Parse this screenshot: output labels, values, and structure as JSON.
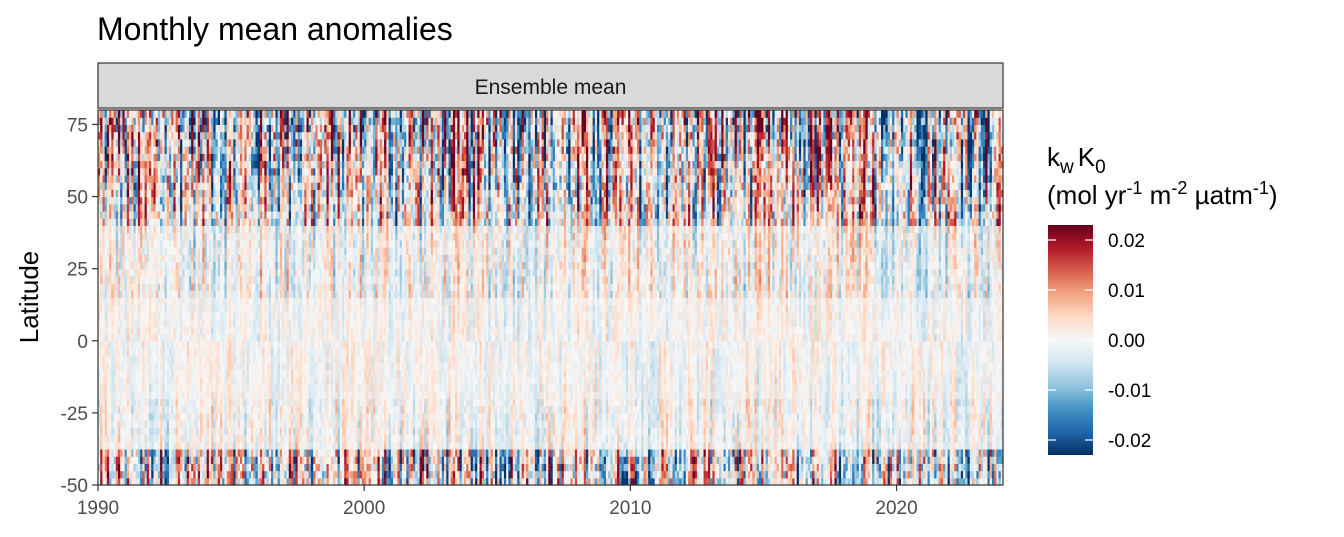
{
  "chart_data": {
    "type": "heatmap",
    "title": "Monthly mean anomalies",
    "facet_label": "Ensemble mean",
    "ylabel": "Latitude",
    "xlabel": "",
    "x_range": [
      1990,
      2024
    ],
    "ylim": [
      -50,
      80
    ],
    "x_ticks": [
      1990,
      2000,
      2010,
      2020
    ],
    "x_tick_labels": [
      "1990",
      "2000",
      "2010",
      "2020"
    ],
    "y_ticks": [
      75,
      50,
      25,
      0,
      -25,
      -50
    ],
    "y_tick_labels": [
      "75",
      "50",
      "25",
      "0",
      "-25",
      "-50"
    ],
    "colorbar": {
      "title_line1_main": "k",
      "title_line1_sub": "w",
      "title_line1_main2": "K",
      "title_line1_sub2": "0",
      "title_line2_a": "(mol yr",
      "title_line2_sup1": "-1",
      "title_line2_b": " m",
      "title_line2_sup2": "-2",
      "title_line2_c": " µatm",
      "title_line2_sup3": "-1",
      "title_line2_d": ")",
      "limits": [
        -0.023,
        0.023
      ],
      "ticks": [
        0.02,
        0.01,
        0.0,
        -0.01,
        -0.02
      ],
      "tick_labels": [
        "0.02",
        "0.01",
        "0.00",
        "-0.01",
        "-0.02"
      ],
      "colors": [
        "#053061",
        "#2166ac",
        "#4393c3",
        "#92c5de",
        "#d1e5f0",
        "#f7f7f7",
        "#fddbc7",
        "#f4a582",
        "#d6604d",
        "#b2182b",
        "#67001f"
      ]
    },
    "grid": false,
    "legend_position": "right"
  }
}
